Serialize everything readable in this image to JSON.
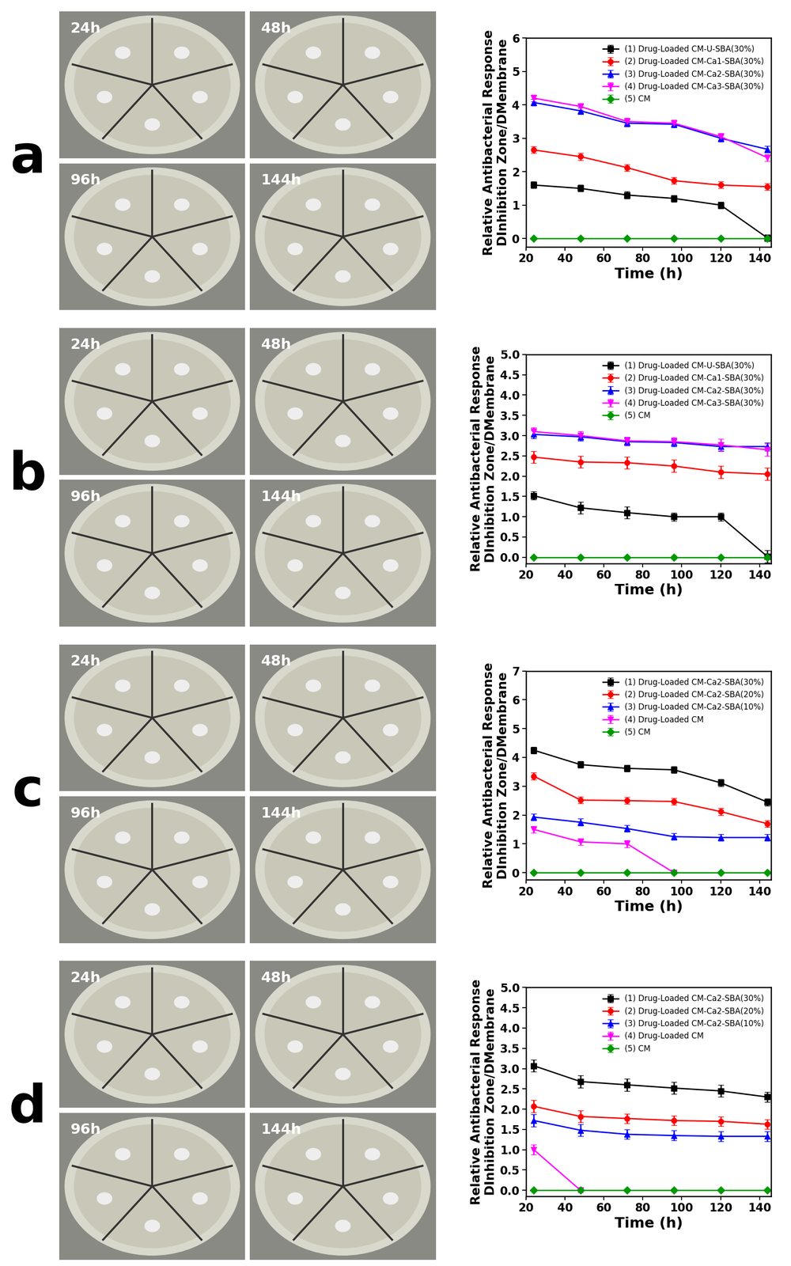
{
  "panels": {
    "labels": [
      "a",
      "b",
      "c",
      "d"
    ],
    "photo_times": [
      "24h",
      "48h",
      "96h",
      "144h"
    ]
  },
  "chart_data": [
    {
      "type": "line",
      "xlabel": "Time (h)",
      "ylabel": "Relative Antibacterial Response\nDInhibition Zone/DMembrane",
      "x": [
        24,
        48,
        72,
        96,
        120,
        144
      ],
      "xlim": [
        20,
        146
      ],
      "xticks": [
        20,
        40,
        60,
        80,
        100,
        120,
        140
      ],
      "ylim": [
        -0.25,
        6
      ],
      "yticks": [
        0,
        1,
        2,
        3,
        4,
        5,
        6
      ],
      "legend": "upper right",
      "series": [
        {
          "name": "(1) Drug-Loaded CM-U-SBA(30%)",
          "color": "#000000",
          "marker": "square",
          "values": [
            1.6,
            1.5,
            1.3,
            1.2,
            1.0,
            0.02
          ],
          "error": [
            0.1,
            0.1,
            0.1,
            0.1,
            0.1,
            0.1
          ]
        },
        {
          "name": "(2) Drug-Loaded CM-Ca1-SBA(30%)",
          "color": "#ff0000",
          "marker": "circle",
          "values": [
            2.65,
            2.45,
            2.12,
            1.73,
            1.6,
            1.55
          ],
          "error": [
            0.1,
            0.1,
            0.1,
            0.1,
            0.1,
            0.1
          ]
        },
        {
          "name": "(3) Drug-Loaded CM-Ca2-SBA(30%)",
          "color": "#0000ff",
          "marker": "triangle_up",
          "values": [
            4.07,
            3.82,
            3.45,
            3.42,
            3.0,
            2.67
          ],
          "error": [
            0.1,
            0.1,
            0.1,
            0.1,
            0.1,
            0.1
          ]
        },
        {
          "name": "(4) Drug-Loaded CM-Ca3-SBA(30%)",
          "color": "#ff00ff",
          "marker": "triangle_down",
          "values": [
            4.2,
            3.95,
            3.5,
            3.45,
            3.05,
            2.42
          ],
          "error": [
            0.1,
            0.1,
            0.1,
            0.1,
            0.1,
            0.1
          ]
        },
        {
          "name": "(5) CM",
          "color": "#009900",
          "marker": "diamond",
          "values": [
            0,
            0,
            0,
            0,
            0,
            0
          ],
          "error": [
            0,
            0,
            0,
            0,
            0,
            0
          ]
        }
      ]
    },
    {
      "type": "line",
      "xlabel": "Time (h)",
      "ylabel": "Relative Antibacterial Response\nDInhibition Zone/DMembrane",
      "x": [
        24,
        48,
        72,
        96,
        120,
        144
      ],
      "xlim": [
        20,
        146
      ],
      "xticks": [
        20,
        40,
        60,
        80,
        100,
        120,
        140
      ],
      "ylim": [
        -0.15,
        5.0
      ],
      "yticks": [
        {
          "value": 0,
          "label": "0.0"
        },
        {
          "value": 0.5,
          "label": "0.5"
        },
        {
          "value": 1,
          "label": "1.0"
        },
        {
          "value": 1.5,
          "label": "1.5"
        },
        {
          "value": 2,
          "label": "2.0"
        },
        {
          "value": 2.5,
          "label": "2.5"
        },
        {
          "value": 3,
          "label": "3.0"
        },
        {
          "value": 3.5,
          "label": "3.5"
        },
        {
          "value": 4,
          "label": "4.0"
        },
        {
          "value": 4.5,
          "label": "4.5"
        },
        {
          "value": 5,
          "label": "5.0"
        }
      ],
      "legend": "upper right",
      "series": [
        {
          "name": "(1) Drug-Loaded CM-U-SBA(30%)",
          "color": "#000000",
          "marker": "square",
          "values": [
            1.52,
            1.22,
            1.1,
            1.0,
            1.0,
            0.02
          ],
          "error": [
            0.1,
            0.15,
            0.15,
            0.1,
            0.1,
            0.15
          ]
        },
        {
          "name": "(2) Drug-Loaded CM-Ca1-SBA(30%)",
          "color": "#ff0000",
          "marker": "circle",
          "values": [
            2.47,
            2.35,
            2.33,
            2.25,
            2.1,
            2.05
          ],
          "error": [
            0.15,
            0.15,
            0.15,
            0.15,
            0.15,
            0.15
          ]
        },
        {
          "name": "(3) Drug-Loaded CM-Ca2-SBA(30%)",
          "color": "#0000ff",
          "marker": "triangle_up",
          "values": [
            3.03,
            2.97,
            2.85,
            2.83,
            2.73,
            2.73
          ],
          "error": [
            0.1,
            0.1,
            0.1,
            0.1,
            0.1,
            0.1
          ]
        },
        {
          "name": "(4) Drug-Loaded CM-Ca3-SBA(30%)",
          "color": "#ff00ff",
          "marker": "triangle_down",
          "values": [
            3.1,
            3.0,
            2.87,
            2.85,
            2.77,
            2.65
          ],
          "error": [
            0.1,
            0.1,
            0.1,
            0.1,
            0.15,
            0.15
          ]
        },
        {
          "name": "(5) CM",
          "color": "#009900",
          "marker": "diamond",
          "values": [
            0,
            0,
            0,
            0,
            0,
            0
          ],
          "error": [
            0,
            0,
            0,
            0,
            0,
            0
          ]
        }
      ]
    },
    {
      "type": "line",
      "xlabel": "Time (h)",
      "ylabel": "Relative Antibacterial Response\nDInhibition Zone/DMembrane",
      "x": [
        24,
        48,
        72,
        96,
        120,
        144
      ],
      "xlim": [
        20,
        146
      ],
      "xticks": [
        20,
        40,
        60,
        80,
        100,
        120,
        140
      ],
      "ylim": [
        -0.25,
        7
      ],
      "yticks": [
        0,
        1,
        2,
        3,
        4,
        5,
        6,
        7
      ],
      "legend": "upper right",
      "series": [
        {
          "name": "(1) Drug-Loaded CM-Ca2-SBA(30%)",
          "color": "#000000",
          "marker": "square",
          "values": [
            4.25,
            3.75,
            3.62,
            3.57,
            3.12,
            2.45
          ],
          "error": [
            0.12,
            0.12,
            0.12,
            0.12,
            0.12,
            0.12
          ]
        },
        {
          "name": "(2) Drug-Loaded CM-Ca2-SBA(20%)",
          "color": "#ff0000",
          "marker": "circle",
          "values": [
            3.35,
            2.52,
            2.5,
            2.47,
            2.12,
            1.7
          ],
          "error": [
            0.12,
            0.12,
            0.12,
            0.12,
            0.12,
            0.12
          ]
        },
        {
          "name": "(3) Drug-Loaded CM-Ca2-SBA(10%)",
          "color": "#0000ff",
          "marker": "triangle_up",
          "values": [
            1.93,
            1.75,
            1.53,
            1.25,
            1.22,
            1.22
          ],
          "error": [
            0.12,
            0.12,
            0.12,
            0.12,
            0.12,
            0.12
          ]
        },
        {
          "name": "(4) Drug-Loaded CM",
          "color": "#ff00ff",
          "marker": "triangle_down",
          "values": [
            1.5,
            1.07,
            1.0,
            0,
            null,
            null
          ],
          "error": [
            0.12,
            0.12,
            0.12,
            0.05,
            null,
            null
          ]
        },
        {
          "name": "(5) CM",
          "color": "#009900",
          "marker": "diamond",
          "values": [
            0,
            0,
            0,
            0,
            0,
            0
          ],
          "error": [
            0,
            0,
            0,
            0,
            0,
            0
          ]
        }
      ]
    },
    {
      "type": "line",
      "xlabel": "Time (h)",
      "ylabel": "Relative Antibacterial Response\nDInhibition Zone/DMembrane",
      "x": [
        24,
        48,
        72,
        96,
        120,
        144
      ],
      "xlim": [
        20,
        146
      ],
      "xticks": [
        20,
        40,
        60,
        80,
        100,
        120,
        140
      ],
      "ylim": [
        -0.15,
        5.0
      ],
      "yticks": [
        {
          "value": 0,
          "label": "0.0"
        },
        {
          "value": 0.5,
          "label": "0.5"
        },
        {
          "value": 1,
          "label": "1.0"
        },
        {
          "value": 1.5,
          "label": "1.5"
        },
        {
          "value": 2,
          "label": "2.0"
        },
        {
          "value": 2.5,
          "label": "2.5"
        },
        {
          "value": 3,
          "label": "3.0"
        },
        {
          "value": 3.5,
          "label": "3.5"
        },
        {
          "value": 4,
          "label": "4.0"
        },
        {
          "value": 4.5,
          "label": "4.5"
        },
        {
          "value": 5,
          "label": "5.0"
        }
      ],
      "legend": "upper right",
      "series": [
        {
          "name": "(1) Drug-Loaded CM-Ca2-SBA(30%)",
          "color": "#000000",
          "marker": "square",
          "values": [
            3.07,
            2.68,
            2.6,
            2.52,
            2.45,
            2.3
          ],
          "error": [
            0.15,
            0.15,
            0.15,
            0.15,
            0.15,
            0.12
          ]
        },
        {
          "name": "(2) Drug-Loaded CM-Ca2-SBA(20%)",
          "color": "#ff0000",
          "marker": "circle",
          "values": [
            2.07,
            1.82,
            1.77,
            1.72,
            1.7,
            1.63
          ],
          "error": [
            0.15,
            0.15,
            0.12,
            0.12,
            0.12,
            0.12
          ]
        },
        {
          "name": "(3) Drug-Loaded CM-Ca2-SBA(10%)",
          "color": "#0000ff",
          "marker": "triangle_up",
          "values": [
            1.72,
            1.48,
            1.38,
            1.35,
            1.33,
            1.33
          ],
          "error": [
            0.15,
            0.15,
            0.12,
            0.12,
            0.12,
            0.12
          ]
        },
        {
          "name": "(4) Drug-Loaded CM",
          "color": "#ff00ff",
          "marker": "triangle_down",
          "values": [
            1.0,
            0.0,
            null,
            null,
            null,
            null
          ],
          "error": [
            0.12,
            0.05,
            null,
            null,
            null,
            null
          ]
        },
        {
          "name": "(5) CM",
          "color": "#009900",
          "marker": "diamond",
          "values": [
            0,
            0,
            0,
            0,
            0,
            0
          ],
          "error": [
            0,
            0,
            0,
            0,
            0,
            0
          ]
        }
      ]
    }
  ]
}
